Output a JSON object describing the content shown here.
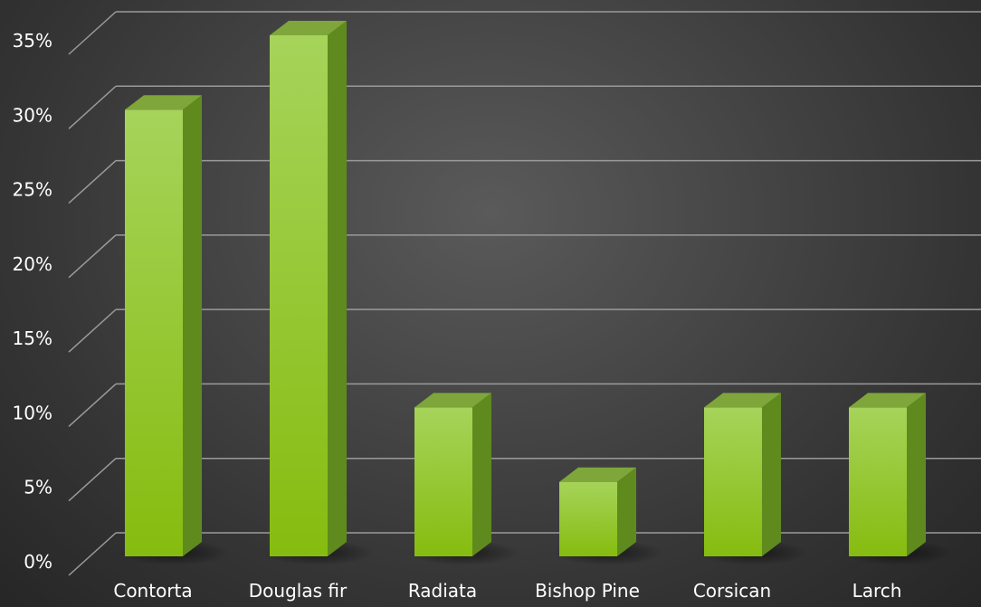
{
  "chart_data": {
    "type": "bar",
    "categories": [
      "Contorta",
      "Douglas fir",
      "Radiata",
      "Bishop Pine",
      "Corsican",
      "Larch"
    ],
    "series": [
      {
        "values": [
          30,
          35,
          10,
          5,
          10,
          10
        ]
      }
    ],
    "yticks": [
      "0%",
      "5%",
      "10%",
      "15%",
      "20%",
      "25%",
      "30%",
      "35%"
    ],
    "ylim": [
      0,
      35
    ],
    "grid": true,
    "three_d": true,
    "colors": {
      "bar_front_top": "#a6d35a",
      "bar_front_bottom": "#86bc0f",
      "bar_side": "#5f8a1e",
      "bar_top": "#7ea63a",
      "grid": "#9a9a9a"
    }
  }
}
